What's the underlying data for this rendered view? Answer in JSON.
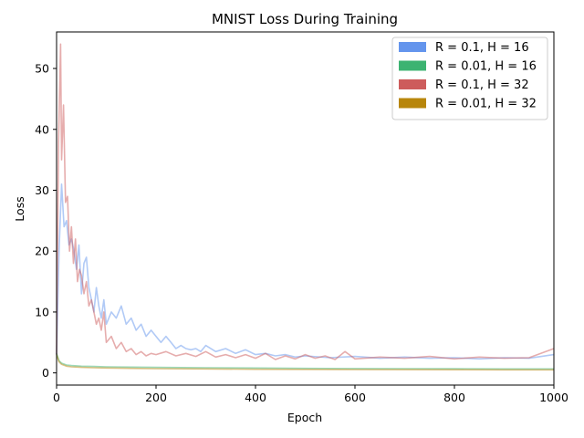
{
  "chart_data": {
    "type": "line",
    "title": "MNIST Loss During Training",
    "xlabel": "Epoch",
    "ylabel": "Loss",
    "xlim": [
      0,
      1000
    ],
    "ylim": [
      -2,
      56
    ],
    "xticks": [
      0,
      200,
      400,
      600,
      800,
      1000
    ],
    "yticks": [
      0,
      10,
      20,
      30,
      40,
      50
    ],
    "grid": false,
    "legend_position": "top-right",
    "series": [
      {
        "name": "R = 0.1, H = 16",
        "color": "#6495ed",
        "x": [
          0,
          5,
          10,
          15,
          20,
          25,
          30,
          35,
          40,
          45,
          50,
          55,
          60,
          65,
          70,
          75,
          80,
          85,
          90,
          95,
          100,
          110,
          120,
          130,
          140,
          150,
          160,
          170,
          180,
          190,
          200,
          210,
          220,
          230,
          240,
          250,
          260,
          270,
          280,
          290,
          300,
          320,
          340,
          360,
          380,
          400,
          420,
          440,
          460,
          480,
          500,
          550,
          600,
          650,
          700,
          750,
          800,
          850,
          900,
          950,
          1000
        ],
        "values": [
          3,
          20,
          31,
          24,
          25,
          21,
          22,
          20,
          17,
          21,
          13,
          18,
          19,
          14,
          12,
          10,
          14,
          11,
          9,
          12,
          8,
          10,
          9,
          11,
          8,
          9,
          7,
          8,
          6,
          7,
          6,
          5,
          6,
          5,
          4,
          4.5,
          4,
          3.8,
          4,
          3.5,
          4.5,
          3.5,
          4,
          3.2,
          3.8,
          3,
          3.2,
          2.8,
          3,
          2.6,
          2.8,
          2.5,
          2.7,
          2.4,
          2.6,
          2.4,
          2.5,
          2.3,
          2.5,
          2.4,
          3
        ]
      },
      {
        "name": "R = 0.01, H = 16",
        "color": "#3cb371",
        "x": [
          0,
          5,
          10,
          20,
          30,
          50,
          75,
          100,
          150,
          200,
          300,
          400,
          500,
          600,
          700,
          800,
          900,
          1000
        ],
        "values": [
          3.2,
          2.0,
          1.6,
          1.3,
          1.2,
          1.1,
          1.05,
          1.0,
          0.95,
          0.9,
          0.85,
          0.8,
          0.75,
          0.72,
          0.7,
          0.68,
          0.66,
          0.65
        ]
      },
      {
        "name": "R = 0.1, H = 32",
        "color": "#cd5c5c",
        "x": [
          0,
          4,
          8,
          10,
          14,
          18,
          22,
          26,
          30,
          34,
          38,
          42,
          46,
          50,
          55,
          60,
          65,
          70,
          75,
          80,
          85,
          90,
          95,
          100,
          110,
          120,
          130,
          140,
          150,
          160,
          170,
          180,
          190,
          200,
          220,
          240,
          260,
          280,
          300,
          320,
          340,
          360,
          380,
          400,
          420,
          440,
          460,
          480,
          500,
          520,
          540,
          560,
          580,
          600,
          650,
          700,
          750,
          800,
          850,
          900,
          950,
          1000
        ],
        "values": [
          3,
          38,
          54,
          35,
          44,
          28,
          29,
          20,
          24,
          18,
          22,
          15,
          17,
          16,
          13,
          15,
          11,
          12,
          10,
          8,
          9,
          7,
          10,
          5,
          6,
          4,
          5,
          3.5,
          4,
          3,
          3.5,
          2.8,
          3.2,
          3,
          3.5,
          2.8,
          3.2,
          2.7,
          3.5,
          2.6,
          3,
          2.5,
          3,
          2.4,
          3.2,
          2.2,
          2.8,
          2.3,
          3,
          2.4,
          2.8,
          2.2,
          3.5,
          2.3,
          2.6,
          2.4,
          2.7,
          2.3,
          2.6,
          2.4,
          2.5,
          4
        ]
      },
      {
        "name": "R = 0.01, H = 32",
        "color": "#b8860b",
        "x": [
          0,
          5,
          10,
          20,
          30,
          50,
          75,
          100,
          150,
          200,
          300,
          400,
          500,
          600,
          700,
          800,
          900,
          1000
        ],
        "values": [
          3.0,
          1.8,
          1.4,
          1.1,
          1.0,
          0.9,
          0.85,
          0.8,
          0.75,
          0.7,
          0.65,
          0.6,
          0.58,
          0.55,
          0.53,
          0.52,
          0.51,
          0.5
        ]
      }
    ]
  }
}
